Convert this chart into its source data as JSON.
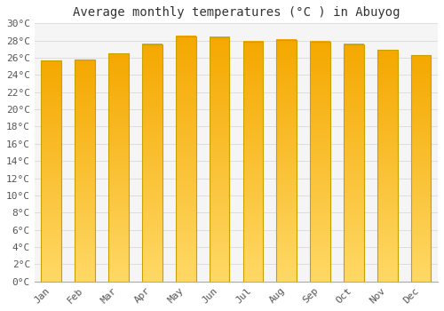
{
  "title": "Average monthly temperatures (°C ) in Abuyog",
  "months": [
    "Jan",
    "Feb",
    "Mar",
    "Apr",
    "May",
    "Jun",
    "Jul",
    "Aug",
    "Sep",
    "Oct",
    "Nov",
    "Dec"
  ],
  "values": [
    25.7,
    25.8,
    26.5,
    27.6,
    28.5,
    28.4,
    27.9,
    28.1,
    27.9,
    27.6,
    26.9,
    26.3
  ],
  "bar_color_top": "#F5A800",
  "bar_color_bottom": "#FFD966",
  "bar_edge_color": "#C8A000",
  "ylim": [
    0,
    30
  ],
  "ytick_step": 2,
  "background_color": "#ffffff",
  "plot_bg_color": "#f5f5f5",
  "grid_color": "#dddddd",
  "title_fontsize": 10,
  "tick_fontsize": 8,
  "bar_width": 0.6
}
